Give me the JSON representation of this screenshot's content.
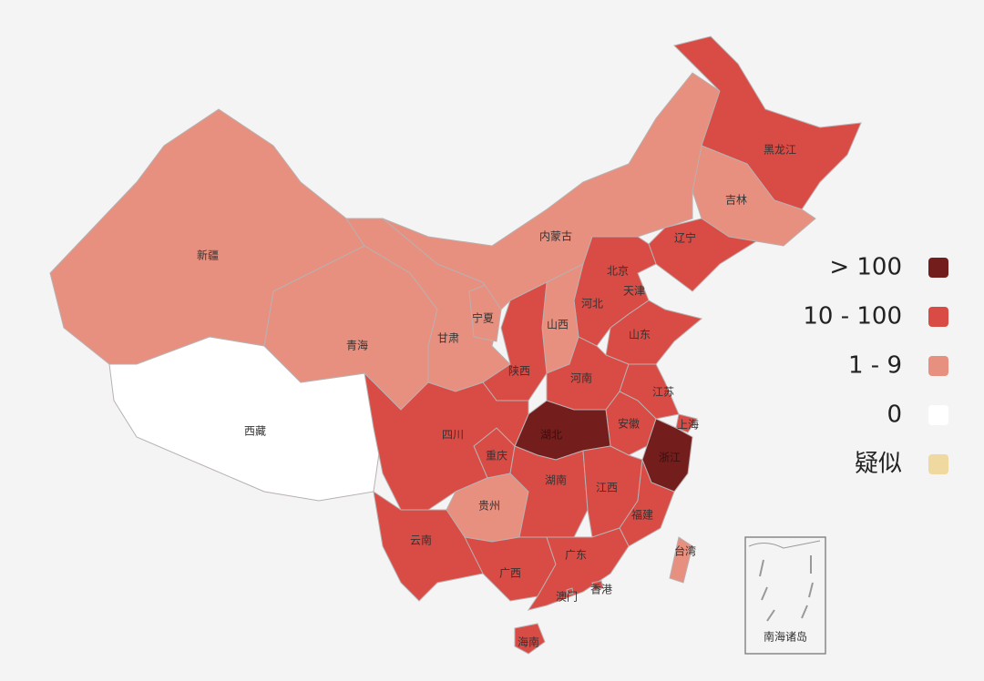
{
  "map": {
    "legend": [
      {
        "label": "> 100",
        "color": "#741d1d"
      },
      {
        "label": "10 - 100",
        "color": "#d94b45"
      },
      {
        "label": "1 - 9",
        "color": "#e8907f"
      },
      {
        "label": "0",
        "color": "#ffffff"
      },
      {
        "label": "疑似",
        "color": "#f0d9a0"
      }
    ],
    "provinces": [
      {
        "name": "新疆",
        "level": 2
      },
      {
        "name": "西藏",
        "level": 3
      },
      {
        "name": "青海",
        "level": 2
      },
      {
        "name": "甘肃",
        "level": 2
      },
      {
        "name": "宁夏",
        "level": 2
      },
      {
        "name": "内蒙古",
        "level": 2
      },
      {
        "name": "黑龙江",
        "level": 1
      },
      {
        "name": "吉林",
        "level": 2
      },
      {
        "name": "辽宁",
        "level": 1
      },
      {
        "name": "北京",
        "level": 1
      },
      {
        "name": "天津",
        "level": 1
      },
      {
        "name": "河北",
        "level": 1
      },
      {
        "name": "山西",
        "level": 2
      },
      {
        "name": "陕西",
        "level": 1
      },
      {
        "name": "山东",
        "level": 1
      },
      {
        "name": "河南",
        "level": 1
      },
      {
        "name": "江苏",
        "level": 1
      },
      {
        "name": "安徽",
        "level": 1
      },
      {
        "name": "上海",
        "level": 1
      },
      {
        "name": "浙江",
        "level": 0
      },
      {
        "name": "湖北",
        "level": 0
      },
      {
        "name": "重庆",
        "level": 1
      },
      {
        "name": "四川",
        "level": 1
      },
      {
        "name": "贵州",
        "level": 2
      },
      {
        "name": "湖南",
        "level": 1
      },
      {
        "name": "江西",
        "level": 1
      },
      {
        "name": "福建",
        "level": 1
      },
      {
        "name": "云南",
        "level": 1
      },
      {
        "name": "广西",
        "level": 1
      },
      {
        "name": "广东",
        "level": 1
      },
      {
        "name": "台湾",
        "level": 2
      },
      {
        "name": "香港",
        "level": 1
      },
      {
        "name": "澳门",
        "level": 1
      },
      {
        "name": "海南",
        "level": 1
      }
    ],
    "inset_label": "南海诸岛"
  }
}
